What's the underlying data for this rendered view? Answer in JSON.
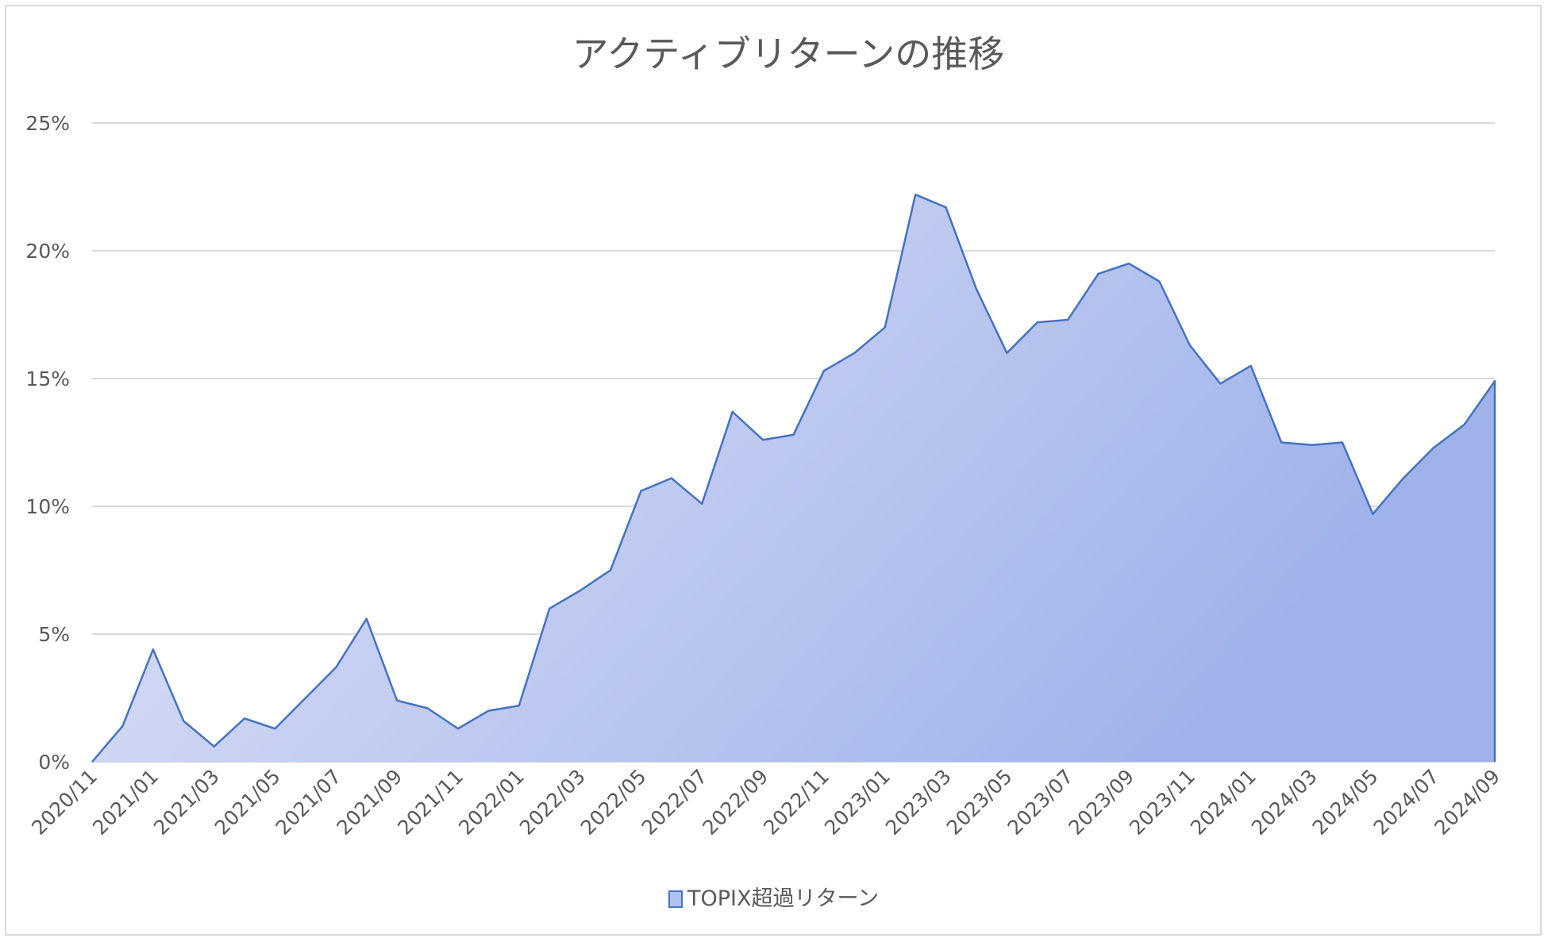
{
  "chart_data": {
    "type": "area",
    "title": "アクティブリターンの推移",
    "xlabel": "",
    "ylabel": "",
    "ylim": [
      0,
      0.25
    ],
    "y_ticks": [
      "0%",
      "5%",
      "10%",
      "15%",
      "20%",
      "25%"
    ],
    "y_tick_values": [
      0,
      0.05,
      0.1,
      0.15,
      0.2,
      0.25
    ],
    "grid": true,
    "legend_position": "bottom",
    "x": [
      "2020/11",
      "2020/12",
      "2021/01",
      "2021/02",
      "2021/03",
      "2021/04",
      "2021/05",
      "2021/06",
      "2021/07",
      "2021/08",
      "2021/09",
      "2021/10",
      "2021/11",
      "2021/12",
      "2022/01",
      "2022/02",
      "2022/03",
      "2022/04",
      "2022/05",
      "2022/06",
      "2022/07",
      "2022/08",
      "2022/09",
      "2022/10",
      "2022/11",
      "2022/12",
      "2023/01",
      "2023/02",
      "2023/03",
      "2023/04",
      "2023/05",
      "2023/06",
      "2023/07",
      "2023/08",
      "2023/09",
      "2023/10",
      "2023/11",
      "2023/12",
      "2024/01",
      "2024/02",
      "2024/03",
      "2024/04",
      "2024/05",
      "2024/06",
      "2024/07",
      "2024/08",
      "2024/09"
    ],
    "x_tick_labels": [
      "2020/11",
      "2021/01",
      "2021/03",
      "2021/05",
      "2021/07",
      "2021/09",
      "2021/11",
      "2022/01",
      "2022/03",
      "2022/05",
      "2022/07",
      "2022/09",
      "2022/11",
      "2023/01",
      "2023/03",
      "2023/05",
      "2023/07",
      "2023/09",
      "2023/11",
      "2024/01",
      "2024/03",
      "2024/05",
      "2024/07",
      "2024/09"
    ],
    "series": [
      {
        "name": "TOPIX超過リターン",
        "color": "#4472c4",
        "fill_start": "#e3e6f7",
        "fill_end": "#9fb2ea",
        "values": [
          0.0,
          0.014,
          0.044,
          0.016,
          0.006,
          0.017,
          0.013,
          0.025,
          0.037,
          0.056,
          0.024,
          0.021,
          0.013,
          0.02,
          0.022,
          0.06,
          0.067,
          0.075,
          0.106,
          0.111,
          0.101,
          0.137,
          0.126,
          0.128,
          0.153,
          0.16,
          0.17,
          0.222,
          0.217,
          0.185,
          0.16,
          0.172,
          0.173,
          0.191,
          0.195,
          0.188,
          0.163,
          0.148,
          0.155,
          0.125,
          0.124,
          0.125,
          0.097,
          0.111,
          0.123,
          0.132,
          0.149
        ]
      }
    ]
  }
}
